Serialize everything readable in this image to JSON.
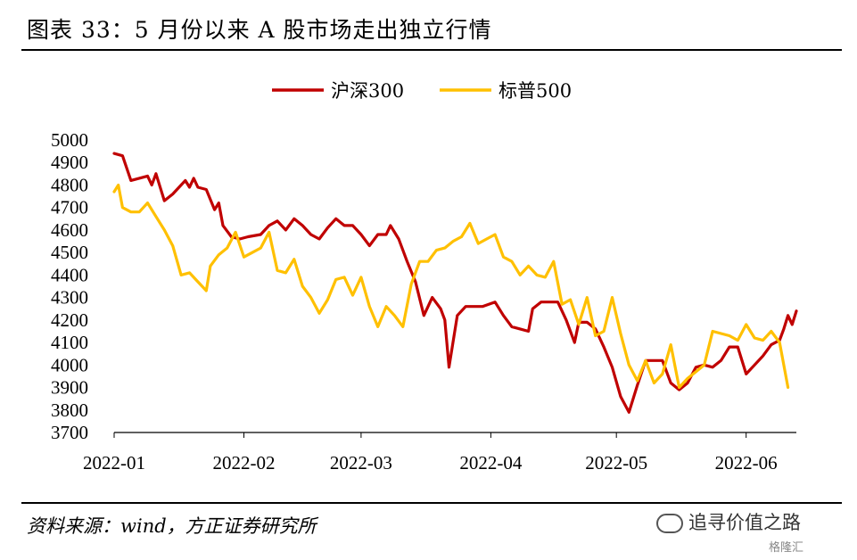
{
  "title": "图表 33：5 月份以来 A 股市场走出独立行情",
  "source": "资料来源：wind，方正证券研究所",
  "watermark": "追寻价值之路",
  "badge": "格隆汇",
  "colors": {
    "hs300": "#C00000",
    "sp500": "#FFC000"
  },
  "chart_data": {
    "type": "line",
    "title": "",
    "xlabel": "",
    "ylabel": "",
    "ylim": [
      3700,
      5000
    ],
    "yticks": [
      3700,
      3800,
      3900,
      4000,
      4100,
      4200,
      4300,
      4400,
      4500,
      4600,
      4700,
      4800,
      4900,
      5000
    ],
    "xlim": [
      "2022-01-04",
      "2022-06-16"
    ],
    "xticks": [
      {
        "date": "2022-01-04",
        "label": "2022-01"
      },
      {
        "date": "2022-02-04",
        "label": "2022-02"
      },
      {
        "date": "2022-03-04",
        "label": "2022-03"
      },
      {
        "date": "2022-04-04",
        "label": "2022-04"
      },
      {
        "date": "2022-05-04",
        "label": "2022-05"
      },
      {
        "date": "2022-06-04",
        "label": "2022-06"
      }
    ],
    "legend": "top",
    "grid": false,
    "series": [
      {
        "name": "沪深300",
        "color": "#C00000",
        "points": [
          [
            "2022-01-04",
            4940
          ],
          [
            "2022-01-06",
            4930
          ],
          [
            "2022-01-08",
            4820
          ],
          [
            "2022-01-10",
            4830
          ],
          [
            "2022-01-12",
            4840
          ],
          [
            "2022-01-13",
            4800
          ],
          [
            "2022-01-14",
            4850
          ],
          [
            "2022-01-16",
            4730
          ],
          [
            "2022-01-18",
            4760
          ],
          [
            "2022-01-20",
            4800
          ],
          [
            "2022-01-21",
            4820
          ],
          [
            "2022-01-22",
            4790
          ],
          [
            "2022-01-23",
            4830
          ],
          [
            "2022-01-24",
            4790
          ],
          [
            "2022-01-26",
            4780
          ],
          [
            "2022-01-28",
            4690
          ],
          [
            "2022-01-29",
            4720
          ],
          [
            "2022-01-30",
            4620
          ],
          [
            "2022-02-01",
            4570
          ],
          [
            "2022-02-03",
            4560
          ],
          [
            "2022-02-05",
            4570
          ],
          [
            "2022-02-08",
            4580
          ],
          [
            "2022-02-10",
            4620
          ],
          [
            "2022-02-12",
            4640
          ],
          [
            "2022-02-14",
            4600
          ],
          [
            "2022-02-16",
            4650
          ],
          [
            "2022-02-18",
            4620
          ],
          [
            "2022-02-20",
            4580
          ],
          [
            "2022-02-22",
            4560
          ],
          [
            "2022-02-24",
            4610
          ],
          [
            "2022-02-26",
            4650
          ],
          [
            "2022-02-28",
            4620
          ],
          [
            "2022-03-02",
            4620
          ],
          [
            "2022-03-04",
            4580
          ],
          [
            "2022-03-06",
            4530
          ],
          [
            "2022-03-08",
            4580
          ],
          [
            "2022-03-10",
            4580
          ],
          [
            "2022-03-11",
            4620
          ],
          [
            "2022-03-13",
            4560
          ],
          [
            "2022-03-15",
            4460
          ],
          [
            "2022-03-17",
            4370
          ],
          [
            "2022-03-19",
            4220
          ],
          [
            "2022-03-21",
            4300
          ],
          [
            "2022-03-23",
            4250
          ],
          [
            "2022-03-24",
            4200
          ],
          [
            "2022-03-25",
            3990
          ],
          [
            "2022-03-27",
            4220
          ],
          [
            "2022-03-29",
            4260
          ],
          [
            "2022-03-31",
            4260
          ],
          [
            "2022-04-02",
            4260
          ],
          [
            "2022-04-05",
            4280
          ],
          [
            "2022-04-07",
            4220
          ],
          [
            "2022-04-09",
            4170
          ],
          [
            "2022-04-11",
            4160
          ],
          [
            "2022-04-13",
            4150
          ],
          [
            "2022-04-14",
            4250
          ],
          [
            "2022-04-16",
            4280
          ],
          [
            "2022-04-18",
            4280
          ],
          [
            "2022-04-20",
            4280
          ],
          [
            "2022-04-22",
            4200
          ],
          [
            "2022-04-24",
            4100
          ],
          [
            "2022-04-25",
            4190
          ],
          [
            "2022-04-27",
            4190
          ],
          [
            "2022-04-29",
            4160
          ],
          [
            "2022-05-01",
            4080
          ],
          [
            "2022-05-03",
            3990
          ],
          [
            "2022-05-05",
            3860
          ],
          [
            "2022-05-07",
            3790
          ],
          [
            "2022-05-09",
            3910
          ],
          [
            "2022-05-11",
            4020
          ],
          [
            "2022-05-13",
            4020
          ],
          [
            "2022-05-15",
            4020
          ],
          [
            "2022-05-17",
            3920
          ],
          [
            "2022-05-19",
            3890
          ],
          [
            "2022-05-21",
            3920
          ],
          [
            "2022-05-23",
            3990
          ],
          [
            "2022-05-25",
            4000
          ],
          [
            "2022-05-27",
            3990
          ],
          [
            "2022-05-29",
            4020
          ],
          [
            "2022-05-31",
            4080
          ],
          [
            "2022-06-02",
            4080
          ],
          [
            "2022-06-04",
            3960
          ],
          [
            "2022-06-06",
            4000
          ],
          [
            "2022-06-08",
            4040
          ],
          [
            "2022-06-10",
            4090
          ],
          [
            "2022-06-12",
            4110
          ],
          [
            "2022-06-13",
            4160
          ],
          [
            "2022-06-14",
            4220
          ],
          [
            "2022-06-15",
            4180
          ],
          [
            "2022-06-16",
            4240
          ]
        ]
      },
      {
        "name": "标普500",
        "color": "#FFC000",
        "points": [
          [
            "2022-01-04",
            4770
          ],
          [
            "2022-01-05",
            4800
          ],
          [
            "2022-01-06",
            4700
          ],
          [
            "2022-01-08",
            4680
          ],
          [
            "2022-01-10",
            4680
          ],
          [
            "2022-01-12",
            4720
          ],
          [
            "2022-01-14",
            4660
          ],
          [
            "2022-01-16",
            4600
          ],
          [
            "2022-01-18",
            4530
          ],
          [
            "2022-01-20",
            4400
          ],
          [
            "2022-01-22",
            4410
          ],
          [
            "2022-01-24",
            4370
          ],
          [
            "2022-01-26",
            4330
          ],
          [
            "2022-01-27",
            4440
          ],
          [
            "2022-01-29",
            4490
          ],
          [
            "2022-01-31",
            4520
          ],
          [
            "2022-02-02",
            4590
          ],
          [
            "2022-02-04",
            4480
          ],
          [
            "2022-02-06",
            4500
          ],
          [
            "2022-02-08",
            4520
          ],
          [
            "2022-02-10",
            4590
          ],
          [
            "2022-02-12",
            4420
          ],
          [
            "2022-02-14",
            4410
          ],
          [
            "2022-02-16",
            4470
          ],
          [
            "2022-02-18",
            4350
          ],
          [
            "2022-02-20",
            4300
          ],
          [
            "2022-02-22",
            4230
          ],
          [
            "2022-02-24",
            4290
          ],
          [
            "2022-02-26",
            4380
          ],
          [
            "2022-02-28",
            4390
          ],
          [
            "2022-03-02",
            4310
          ],
          [
            "2022-03-04",
            4390
          ],
          [
            "2022-03-06",
            4260
          ],
          [
            "2022-03-08",
            4170
          ],
          [
            "2022-03-10",
            4260
          ],
          [
            "2022-03-12",
            4220
          ],
          [
            "2022-03-14",
            4170
          ],
          [
            "2022-03-16",
            4360
          ],
          [
            "2022-03-18",
            4460
          ],
          [
            "2022-03-20",
            4460
          ],
          [
            "2022-03-22",
            4510
          ],
          [
            "2022-03-24",
            4520
          ],
          [
            "2022-03-26",
            4550
          ],
          [
            "2022-03-28",
            4570
          ],
          [
            "2022-03-30",
            4630
          ],
          [
            "2022-04-01",
            4540
          ],
          [
            "2022-04-03",
            4560
          ],
          [
            "2022-04-05",
            4580
          ],
          [
            "2022-04-07",
            4480
          ],
          [
            "2022-04-09",
            4460
          ],
          [
            "2022-04-11",
            4400
          ],
          [
            "2022-04-13",
            4440
          ],
          [
            "2022-04-15",
            4400
          ],
          [
            "2022-04-17",
            4390
          ],
          [
            "2022-04-19",
            4460
          ],
          [
            "2022-04-21",
            4270
          ],
          [
            "2022-04-23",
            4290
          ],
          [
            "2022-04-25",
            4180
          ],
          [
            "2022-04-27",
            4300
          ],
          [
            "2022-04-29",
            4130
          ],
          [
            "2022-05-01",
            4150
          ],
          [
            "2022-05-03",
            4300
          ],
          [
            "2022-05-05",
            4140
          ],
          [
            "2022-05-07",
            4000
          ],
          [
            "2022-05-09",
            3930
          ],
          [
            "2022-05-11",
            4020
          ],
          [
            "2022-05-13",
            3920
          ],
          [
            "2022-05-15",
            3960
          ],
          [
            "2022-05-17",
            4090
          ],
          [
            "2022-05-19",
            3900
          ],
          [
            "2022-05-21",
            3940
          ],
          [
            "2022-05-23",
            3970
          ],
          [
            "2022-05-25",
            4000
          ],
          [
            "2022-05-27",
            4150
          ],
          [
            "2022-05-29",
            4140
          ],
          [
            "2022-05-31",
            4130
          ],
          [
            "2022-06-02",
            4110
          ],
          [
            "2022-06-04",
            4180
          ],
          [
            "2022-06-06",
            4120
          ],
          [
            "2022-06-08",
            4110
          ],
          [
            "2022-06-10",
            4150
          ],
          [
            "2022-06-12",
            4100
          ],
          [
            "2022-06-14",
            3900
          ]
        ]
      }
    ]
  }
}
